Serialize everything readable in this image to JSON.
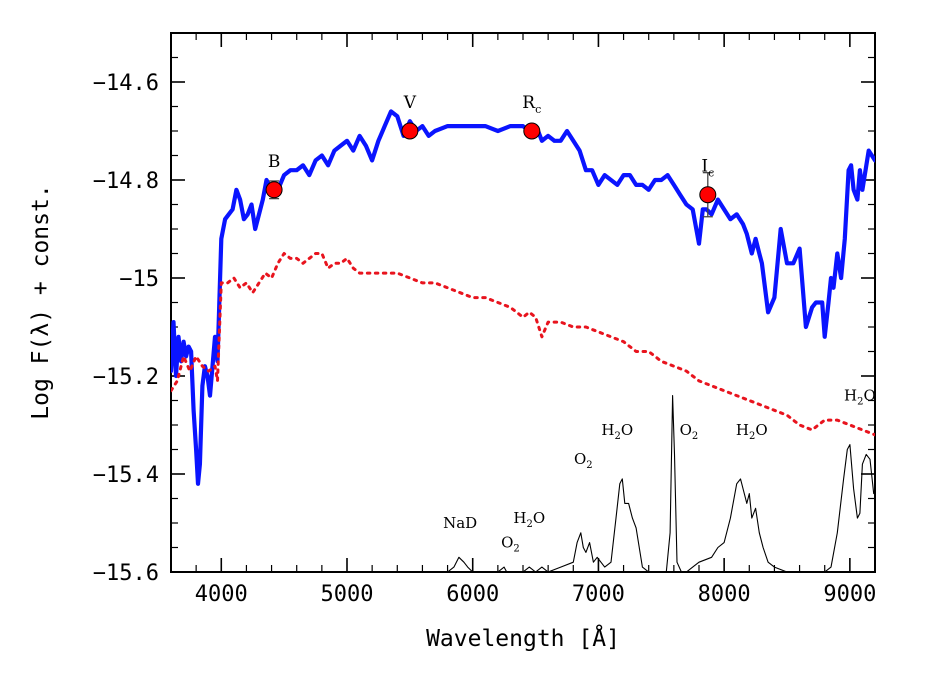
{
  "chart_data": {
    "type": "line",
    "xlabel": "Wavelength [Å]",
    "ylabel": "Log F(λ) + const.",
    "xlim": [
      3600,
      9200
    ],
    "ylim": [
      -15.6,
      -14.5
    ],
    "xticks": [
      4000,
      5000,
      6000,
      7000,
      8000,
      9000
    ],
    "xtick_labels": [
      "4000",
      "5000",
      "6000",
      "7000",
      "8000",
      "9000"
    ],
    "yticks": [
      -15.6,
      -15.4,
      -15.2,
      -15.0,
      -14.8,
      -14.6
    ],
    "ytick_labels": [
      "−15.6",
      "−15.4",
      "−15.2",
      "−15",
      "−14.8",
      "−14.6"
    ],
    "grid": false,
    "series": [
      {
        "style": "solid",
        "color": "#0a14ff",
        "x": [
          3600,
          3620,
          3640,
          3660,
          3680,
          3700,
          3720,
          3740,
          3760,
          3780,
          3800,
          3815,
          3830,
          3850,
          3870,
          3890,
          3910,
          3930,
          3950,
          3970,
          4000,
          4030,
          4060,
          4090,
          4120,
          4150,
          4180,
          4210,
          4240,
          4270,
          4300,
          4330,
          4360,
          4400,
          4450,
          4500,
          4550,
          4600,
          4650,
          4700,
          4750,
          4800,
          4850,
          4900,
          4950,
          5000,
          5050,
          5100,
          5150,
          5200,
          5250,
          5300,
          5350,
          5400,
          5450,
          5500,
          5550,
          5600,
          5650,
          5700,
          5800,
          5900,
          6000,
          6100,
          6200,
          6300,
          6400,
          6450,
          6500,
          6520,
          6550,
          6600,
          6650,
          6700,
          6750,
          6800,
          6850,
          6900,
          6950,
          7000,
          7050,
          7100,
          7150,
          7200,
          7250,
          7300,
          7350,
          7400,
          7450,
          7500,
          7550,
          7600,
          7650,
          7700,
          7750,
          7800,
          7830,
          7860,
          7900,
          7950,
          8000,
          8050,
          8100,
          8150,
          8180,
          8200,
          8220,
          8250,
          8280,
          8300,
          8350,
          8400,
          8450,
          8500,
          8550,
          8600,
          8650,
          8700,
          8730,
          8750,
          8780,
          8800,
          8830,
          8850,
          8870,
          8900,
          8930,
          8960,
          8990,
          9010,
          9030,
          9060,
          9080,
          9100,
          9150,
          9200
        ],
        "y": [
          -15.19,
          -15.09,
          -15.2,
          -15.12,
          -15.17,
          -15.13,
          -15.16,
          -15.14,
          -15.15,
          -15.27,
          -15.35,
          -15.42,
          -15.38,
          -15.22,
          -15.18,
          -15.2,
          -15.24,
          -15.18,
          -15.12,
          -15.17,
          -14.92,
          -14.88,
          -14.87,
          -14.86,
          -14.82,
          -14.84,
          -14.88,
          -14.87,
          -14.85,
          -14.9,
          -14.87,
          -14.84,
          -14.8,
          -14.82,
          -14.82,
          -14.79,
          -14.78,
          -14.78,
          -14.77,
          -14.79,
          -14.76,
          -14.75,
          -14.77,
          -14.74,
          -14.73,
          -14.72,
          -14.74,
          -14.71,
          -14.73,
          -14.76,
          -14.72,
          -14.69,
          -14.66,
          -14.67,
          -14.71,
          -14.68,
          -14.7,
          -14.69,
          -14.71,
          -14.7,
          -14.69,
          -14.69,
          -14.69,
          -14.69,
          -14.7,
          -14.69,
          -14.69,
          -14.7,
          -14.71,
          -14.7,
          -14.72,
          -14.71,
          -14.72,
          -14.72,
          -14.7,
          -14.72,
          -14.74,
          -14.78,
          -14.78,
          -14.81,
          -14.79,
          -14.8,
          -14.81,
          -14.79,
          -14.79,
          -14.81,
          -14.81,
          -14.82,
          -14.8,
          -14.8,
          -14.79,
          -14.81,
          -14.83,
          -14.85,
          -14.86,
          -14.93,
          -14.86,
          -14.86,
          -14.87,
          -14.84,
          -14.86,
          -14.88,
          -14.87,
          -14.89,
          -14.91,
          -14.93,
          -14.95,
          -14.92,
          -14.95,
          -14.97,
          -15.07,
          -15.04,
          -14.9,
          -14.97,
          -14.97,
          -14.94,
          -15.1,
          -15.06,
          -15.05,
          -15.05,
          -15.05,
          -15.12,
          -15.05,
          -15.0,
          -15.02,
          -14.95,
          -15.0,
          -14.92,
          -14.78,
          -14.77,
          -14.82,
          -14.84,
          -14.78,
          -14.82,
          -14.74,
          -14.76
        ]
      },
      {
        "style": "dotted",
        "color": "#e8141e",
        "x": [
          3600,
          3650,
          3700,
          3750,
          3800,
          3850,
          3900,
          3950,
          3970,
          4000,
          4050,
          4100,
          4150,
          4200,
          4250,
          4300,
          4350,
          4400,
          4450,
          4500,
          4550,
          4600,
          4650,
          4700,
          4750,
          4800,
          4850,
          4900,
          4950,
          5000,
          5050,
          5100,
          5200,
          5300,
          5400,
          5500,
          5600,
          5700,
          5800,
          5900,
          6000,
          6100,
          6200,
          6300,
          6400,
          6450,
          6500,
          6550,
          6600,
          6700,
          6800,
          6900,
          7000,
          7100,
          7200,
          7300,
          7400,
          7500,
          7600,
          7700,
          7800,
          7900,
          8000,
          8100,
          8200,
          8300,
          8400,
          8500,
          8600,
          8700,
          8800,
          8900,
          9000,
          9100,
          9200
        ],
        "y": [
          -15.23,
          -15.21,
          -15.16,
          -15.19,
          -15.16,
          -15.18,
          -15.19,
          -15.18,
          -15.21,
          -15.01,
          -15.01,
          -15.0,
          -15.02,
          -15.01,
          -15.03,
          -15.01,
          -14.99,
          -15.0,
          -14.97,
          -14.95,
          -14.96,
          -14.96,
          -14.97,
          -14.96,
          -14.95,
          -14.95,
          -14.98,
          -14.97,
          -14.97,
          -14.96,
          -14.98,
          -14.99,
          -14.99,
          -14.99,
          -14.99,
          -15.0,
          -15.01,
          -15.01,
          -15.02,
          -15.03,
          -15.04,
          -15.04,
          -15.05,
          -15.06,
          -15.08,
          -15.07,
          -15.08,
          -15.12,
          -15.09,
          -15.09,
          -15.1,
          -15.1,
          -15.11,
          -15.12,
          -15.13,
          -15.15,
          -15.15,
          -15.17,
          -15.18,
          -15.19,
          -15.21,
          -15.22,
          -15.23,
          -15.24,
          -15.25,
          -15.26,
          -15.27,
          -15.28,
          -15.3,
          -15.31,
          -15.29,
          -15.29,
          -15.3,
          -15.31,
          -15.32
        ]
      },
      {
        "style": "thin",
        "color": "#000000",
        "x": [
          3600,
          5800,
          5850,
          5890,
          5930,
          5960,
          6000,
          6200,
          6250,
          6270,
          6300,
          6400,
          6450,
          6500,
          6550,
          6600,
          6700,
          6800,
          6830,
          6860,
          6880,
          6900,
          6930,
          6960,
          6990,
          7050,
          7100,
          7140,
          7170,
          7190,
          7210,
          7240,
          7270,
          7300,
          7350,
          7400,
          7450,
          7500,
          7540,
          7570,
          7590,
          7605,
          7625,
          7660,
          7700,
          7750,
          7800,
          7900,
          7950,
          8000,
          8050,
          8100,
          8130,
          8160,
          8180,
          8200,
          8220,
          8250,
          8280,
          8310,
          8350,
          8400,
          8500,
          8700,
          8800,
          8850,
          8900,
          8950,
          8980,
          9000,
          9030,
          9060,
          9080,
          9100,
          9130,
          9160,
          9190,
          9200
        ],
        "y": [
          -15.6,
          -15.6,
          -15.59,
          -15.57,
          -15.58,
          -15.59,
          -15.6,
          -15.6,
          -15.59,
          -15.6,
          -15.6,
          -15.6,
          -15.59,
          -15.6,
          -15.59,
          -15.6,
          -15.59,
          -15.58,
          -15.54,
          -15.52,
          -15.55,
          -15.56,
          -15.54,
          -15.58,
          -15.57,
          -15.59,
          -15.58,
          -15.49,
          -15.42,
          -15.41,
          -15.46,
          -15.46,
          -15.49,
          -15.51,
          -15.59,
          -15.6,
          -15.6,
          -15.6,
          -15.6,
          -15.52,
          -15.24,
          -15.36,
          -15.58,
          -15.6,
          -15.6,
          -15.59,
          -15.58,
          -15.57,
          -15.55,
          -15.54,
          -15.49,
          -15.42,
          -15.41,
          -15.44,
          -15.46,
          -15.44,
          -15.49,
          -15.47,
          -15.52,
          -15.55,
          -15.58,
          -15.59,
          -15.6,
          -15.6,
          -15.6,
          -15.59,
          -15.52,
          -15.41,
          -15.35,
          -15.34,
          -15.43,
          -15.49,
          -15.48,
          -15.38,
          -15.36,
          -15.37,
          -15.44,
          -15.44
        ]
      }
    ],
    "points": {
      "color": "#ff0000",
      "items": [
        {
          "label": "B",
          "sub": "",
          "x": 4420,
          "y": -14.82,
          "err": 0.018
        },
        {
          "label": "V",
          "sub": "",
          "x": 5500,
          "y": -14.7,
          "err": 0.01
        },
        {
          "label": "R",
          "sub": "c",
          "x": 6470,
          "y": -14.7,
          "err": 0.01
        },
        {
          "label": "I",
          "sub": "c",
          "x": 7870,
          "y": -14.83,
          "err": 0.045
        }
      ]
    },
    "annotations": [
      {
        "text": "NaD",
        "sub": "",
        "x": 5900,
        "y": -15.51
      },
      {
        "text": "O",
        "sub": "2",
        "x": 6300,
        "y": -15.55
      },
      {
        "text": "H",
        "sub": "2",
        "tail": "O",
        "x": 6450,
        "y": -15.5
      },
      {
        "text": "O",
        "sub": "2",
        "x": 6880,
        "y": -15.38
      },
      {
        "text": "H",
        "sub": "2",
        "tail": "O",
        "x": 7150,
        "y": -15.32
      },
      {
        "text": "O",
        "sub": "2",
        "x": 7720,
        "y": -15.32
      },
      {
        "text": "H",
        "sub": "2",
        "tail": "O",
        "x": 8220,
        "y": -15.32
      },
      {
        "text": "H",
        "sub": "2",
        "tail": "O",
        "x": 9080,
        "y": -15.25
      }
    ]
  }
}
